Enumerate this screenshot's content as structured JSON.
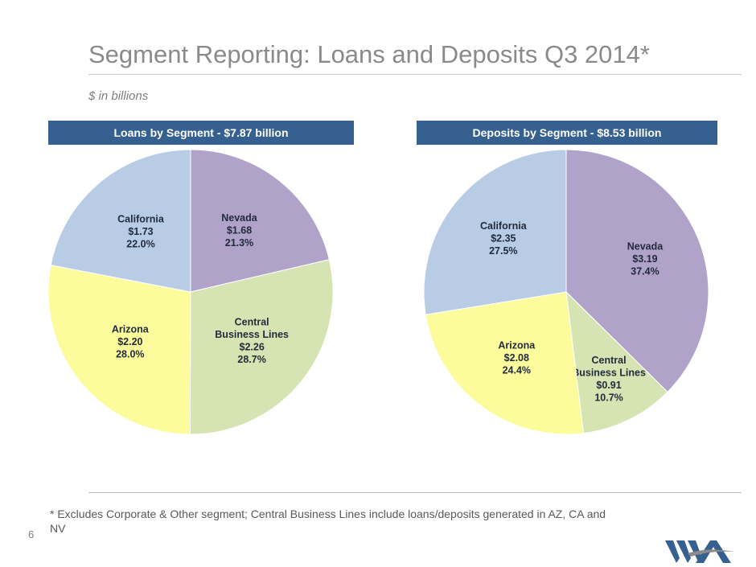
{
  "title": "Segment Reporting:  Loans and Deposits Q3 2014*",
  "subtitle": "$ in billions",
  "footnote": "* Excludes Corporate & Other segment; Central Business Lines include loans/deposits generated in AZ, CA and NV",
  "page_number": "6",
  "colors": {
    "header_bg": "#35608f",
    "nevada": "#b1a2c9",
    "central": "#d6e4b4",
    "arizona": "#fcfc9c",
    "california": "#b9cce6"
  },
  "chart_data": [
    {
      "type": "pie",
      "title": "Loans by Segment - $7.87 billion",
      "slices": [
        {
          "name": "Nevada",
          "value": 1.68,
          "value_label": "$1.68",
          "percent_label": "21.3%",
          "color": "#b1a2c9"
        },
        {
          "name": "Central Business Lines",
          "value": 2.26,
          "value_label": "$2.26",
          "percent_label": "28.7%",
          "color": "#d6e4b4"
        },
        {
          "name": "Arizona",
          "value": 2.2,
          "value_label": "$2.20",
          "percent_label": "28.0%",
          "color": "#fcfc9c"
        },
        {
          "name": "California",
          "value": 1.73,
          "value_label": "$1.73",
          "percent_label": "22.0%",
          "color": "#b9cce6"
        }
      ]
    },
    {
      "type": "pie",
      "title": "Deposits by Segment - $8.53 billion",
      "slices": [
        {
          "name": "Nevada",
          "value": 3.19,
          "value_label": "$3.19",
          "percent_label": "37.4%",
          "color": "#b1a2c9"
        },
        {
          "name": "Central Business Lines",
          "value": 0.91,
          "value_label": "$0.91",
          "percent_label": "10.7%",
          "color": "#d6e4b4"
        },
        {
          "name": "Arizona",
          "value": 2.08,
          "value_label": "$2.08",
          "percent_label": "24.4%",
          "color": "#fcfc9c"
        },
        {
          "name": "California",
          "value": 2.35,
          "value_label": "$2.35",
          "percent_label": "27.5%",
          "color": "#b9cce6"
        }
      ]
    }
  ]
}
